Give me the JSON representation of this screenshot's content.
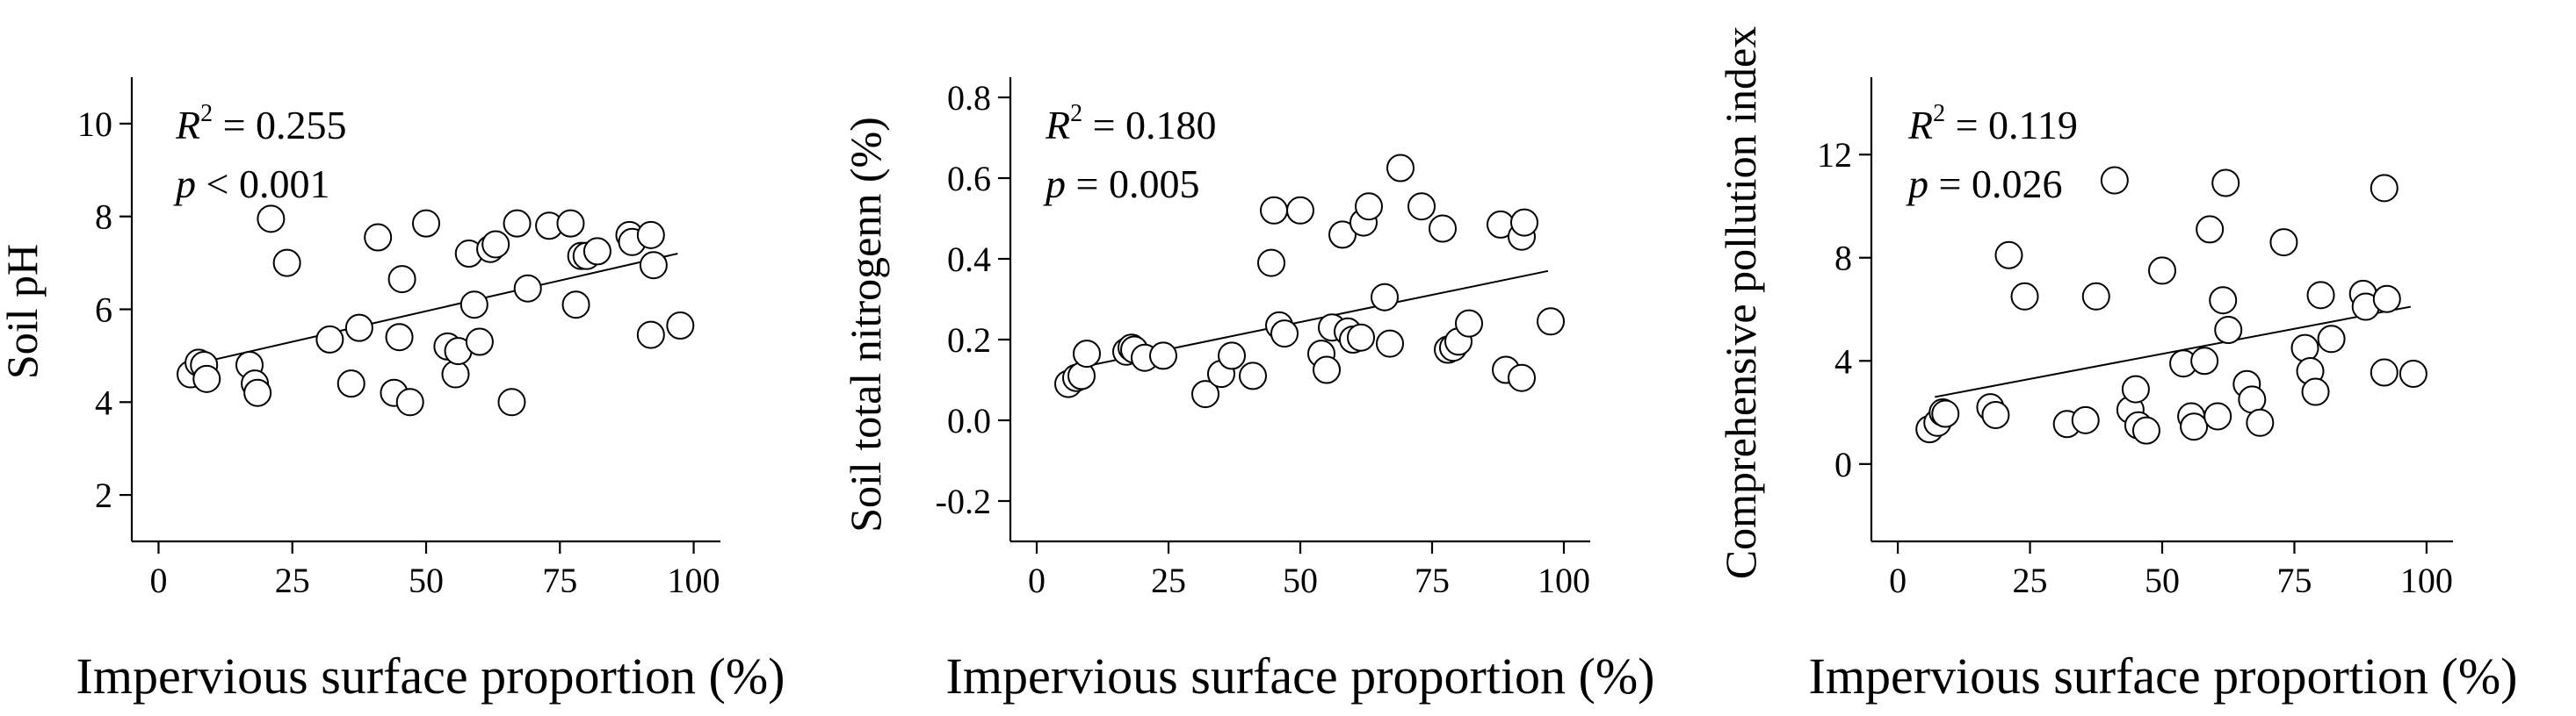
{
  "chart_data": [
    {
      "type": "scatter",
      "xlabel": "Impervious surface proportion (%)",
      "ylabel": "Soil pH",
      "xlim": [
        -5,
        105
      ],
      "ylim": [
        1,
        11
      ],
      "xticks": [
        0,
        25,
        50,
        75,
        100
      ],
      "yticks": [
        2,
        4,
        6,
        8,
        10
      ],
      "xtick_labels": [
        "0",
        "25",
        "50",
        "75",
        "100"
      ],
      "ytick_labels": [
        "2",
        "4",
        "6",
        "8",
        "10"
      ],
      "annotation": {
        "r2_label": "R",
        "r2_sup": "2",
        "r2_text": " = 0.255",
        "p_label": "p",
        "p_text": " < 0.001"
      },
      "trendline": {
        "x": [
          6,
          97
        ],
        "y": [
          4.8,
          7.2
        ]
      },
      "points": [
        [
          6,
          4.6
        ],
        [
          7.5,
          4.85
        ],
        [
          8.5,
          4.8
        ],
        [
          9,
          4.5
        ],
        [
          17,
          4.8
        ],
        [
          18,
          4.4
        ],
        [
          18.5,
          4.2
        ],
        [
          21,
          7.95
        ],
        [
          24,
          7.0
        ],
        [
          32,
          5.35
        ],
        [
          36,
          4.4
        ],
        [
          37.5,
          5.6
        ],
        [
          41,
          7.55
        ],
        [
          44,
          4.2
        ],
        [
          45,
          5.4
        ],
        [
          45.5,
          6.65
        ],
        [
          47,
          4.0
        ],
        [
          50,
          7.85
        ],
        [
          54,
          5.2
        ],
        [
          55.5,
          4.6
        ],
        [
          56,
          5.1
        ],
        [
          58,
          7.2
        ],
        [
          59,
          6.1
        ],
        [
          60,
          5.3
        ],
        [
          62,
          7.3
        ],
        [
          63,
          7.4
        ],
        [
          66,
          4.0
        ],
        [
          67,
          7.85
        ],
        [
          69,
          6.45
        ],
        [
          73,
          7.8
        ],
        [
          77,
          7.85
        ],
        [
          78,
          6.1
        ],
        [
          79,
          7.15
        ],
        [
          80,
          7.15
        ],
        [
          82,
          7.25
        ],
        [
          88,
          7.6
        ],
        [
          88.5,
          7.45
        ],
        [
          92,
          7.6
        ],
        [
          92.5,
          6.95
        ],
        [
          92,
          5.45
        ],
        [
          97.5,
          5.65
        ]
      ]
    },
    {
      "type": "scatter",
      "xlabel": "Impervious surface proportion (%)",
      "ylabel": "Soil total nitrogenn (%)",
      "xlim": [
        -5,
        105
      ],
      "ylim": [
        -0.3,
        0.85
      ],
      "xticks": [
        0,
        25,
        50,
        75,
        100
      ],
      "yticks": [
        -0.2,
        0.0,
        0.2,
        0.4,
        0.6,
        0.8
      ],
      "xtick_labels": [
        "0",
        "25",
        "50",
        "75",
        "100"
      ],
      "ytick_labels": [
        "-0.2",
        "0.0",
        "0.2",
        "0.4",
        "0.6",
        "0.8"
      ],
      "annotation": {
        "r2_label": "R",
        "r2_sup": "2",
        "r2_text": " = 0.180",
        "p_label": "p",
        "p_text": " = 0.005"
      },
      "trendline": {
        "x": [
          6,
          97
        ],
        "y": [
          0.125,
          0.37
        ]
      },
      "points": [
        [
          6,
          0.09
        ],
        [
          7.5,
          0.105
        ],
        [
          8.5,
          0.11
        ],
        [
          9.5,
          0.165
        ],
        [
          17,
          0.17
        ],
        [
          18,
          0.18
        ],
        [
          18.5,
          0.175
        ],
        [
          20.5,
          0.155
        ],
        [
          24,
          0.16
        ],
        [
          32,
          0.065
        ],
        [
          35,
          0.115
        ],
        [
          37,
          0.16
        ],
        [
          41,
          0.11
        ],
        [
          44.5,
          0.39
        ],
        [
          45,
          0.52
        ],
        [
          46,
          0.235
        ],
        [
          47,
          0.215
        ],
        [
          50,
          0.52
        ],
        [
          54,
          0.165
        ],
        [
          55,
          0.125
        ],
        [
          56,
          0.23
        ],
        [
          58,
          0.46
        ],
        [
          59,
          0.22
        ],
        [
          60,
          0.2
        ],
        [
          61.5,
          0.205
        ],
        [
          62,
          0.49
        ],
        [
          63,
          0.53
        ],
        [
          66,
          0.305
        ],
        [
          67,
          0.19
        ],
        [
          69,
          0.625
        ],
        [
          73,
          0.53
        ],
        [
          77,
          0.475
        ],
        [
          78,
          0.175
        ],
        [
          79,
          0.18
        ],
        [
          80,
          0.195
        ],
        [
          82,
          0.24
        ],
        [
          88,
          0.485
        ],
        [
          89,
          0.125
        ],
        [
          92,
          0.455
        ],
        [
          92.5,
          0.49
        ],
        [
          92,
          0.105
        ],
        [
          97.5,
          0.245
        ]
      ]
    },
    {
      "type": "scatter",
      "xlabel": "Impervious surface proportion (%)",
      "ylabel": "Comprehensive pollution index",
      "xlim": [
        -5,
        105
      ],
      "ylim": [
        -3,
        15
      ],
      "xticks": [
        0,
        25,
        50,
        75,
        100
      ],
      "yticks": [
        0,
        4,
        8,
        12
      ],
      "xtick_labels": [
        "0",
        "25",
        "50",
        "75",
        "100"
      ],
      "ytick_labels": [
        "0",
        "4",
        "8",
        "12"
      ],
      "annotation": {
        "r2_label": "R",
        "r2_sup": "2",
        "r2_text": " = 0.119",
        "p_label": "p",
        "p_text": " = 0.026"
      },
      "trendline": {
        "x": [
          7,
          97
        ],
        "y": [
          2.6,
          6.1
        ]
      },
      "points": [
        [
          6,
          1.35
        ],
        [
          7.5,
          1.6
        ],
        [
          8.5,
          2.0
        ],
        [
          9,
          1.95
        ],
        [
          17.5,
          2.2
        ],
        [
          18.5,
          1.9
        ],
        [
          21,
          8.1
        ],
        [
          24,
          6.5
        ],
        [
          32,
          1.55
        ],
        [
          35.5,
          1.7
        ],
        [
          37.5,
          6.5
        ],
        [
          41,
          11.0
        ],
        [
          44,
          2.1
        ],
        [
          45,
          2.9
        ],
        [
          45.5,
          1.5
        ],
        [
          47,
          1.3
        ],
        [
          50,
          7.5
        ],
        [
          54,
          3.9
        ],
        [
          55.5,
          1.85
        ],
        [
          56,
          1.45
        ],
        [
          58,
          4.0
        ],
        [
          59,
          9.1
        ],
        [
          60.5,
          1.85
        ],
        [
          61.5,
          6.35
        ],
        [
          62,
          10.9
        ],
        [
          62.5,
          5.2
        ],
        [
          66,
          3.1
        ],
        [
          67,
          2.5
        ],
        [
          68.5,
          1.6
        ],
        [
          73,
          8.6
        ],
        [
          77,
          4.5
        ],
        [
          78,
          3.6
        ],
        [
          79,
          2.8
        ],
        [
          80,
          6.55
        ],
        [
          82,
          4.85
        ],
        [
          88,
          6.6
        ],
        [
          88.5,
          6.1
        ],
        [
          92,
          10.7
        ],
        [
          92.5,
          6.4
        ],
        [
          92,
          3.55
        ],
        [
          97.5,
          3.5
        ]
      ]
    }
  ]
}
